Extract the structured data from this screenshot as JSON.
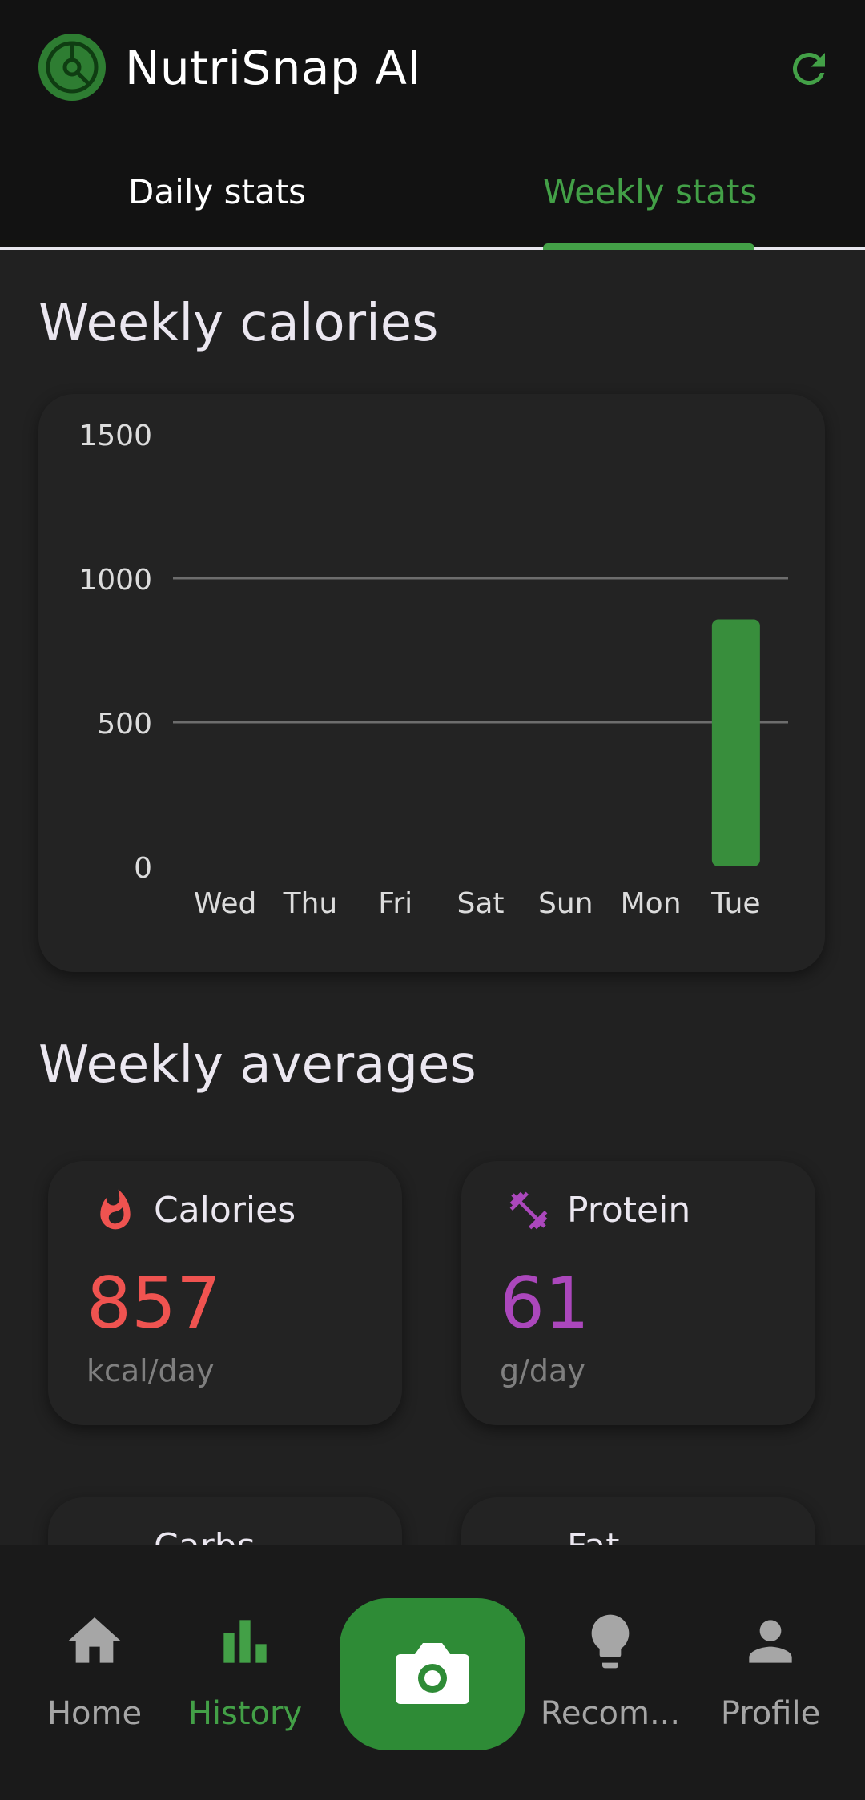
{
  "app": {
    "title": "NutriSnap AI"
  },
  "tabs": [
    {
      "label": "Daily stats"
    },
    {
      "label": "Weekly stats",
      "selected": true
    }
  ],
  "sections": {
    "weekly_calories": "Weekly calories",
    "weekly_averages": "Weekly averages"
  },
  "chart_data": {
    "type": "bar",
    "categories": [
      "Wed",
      "Thu",
      "Fri",
      "Sat",
      "Sun",
      "Mon",
      "Tue"
    ],
    "values": [
      0,
      0,
      0,
      0,
      0,
      0,
      857
    ],
    "y_ticks": [
      "1500",
      "1000",
      "500",
      "0"
    ],
    "ylim": [
      0,
      1500
    ],
    "grid": true,
    "bar_color": "#388e3c"
  },
  "averages": [
    {
      "label": "Calories",
      "value": "857",
      "unit": "kcal/day",
      "color": "#ef5350",
      "icon": "flame-icon"
    },
    {
      "label": "Protein",
      "value": "61",
      "unit": "g/day",
      "color": "#ab47bc",
      "icon": "dumbbell-icon"
    },
    {
      "label": "Carbs",
      "color": "#ff9800",
      "icon": "dots-icon"
    },
    {
      "label": "Fat",
      "color": "#42a5f5",
      "icon": "chevron-up-icon"
    }
  ],
  "nav": {
    "home": "Home",
    "history": "History",
    "recommendations": "Recom...",
    "profile": "Profile"
  },
  "colors": {
    "accent": "#43a047",
    "background": "#212121",
    "appbar": "#121212"
  }
}
